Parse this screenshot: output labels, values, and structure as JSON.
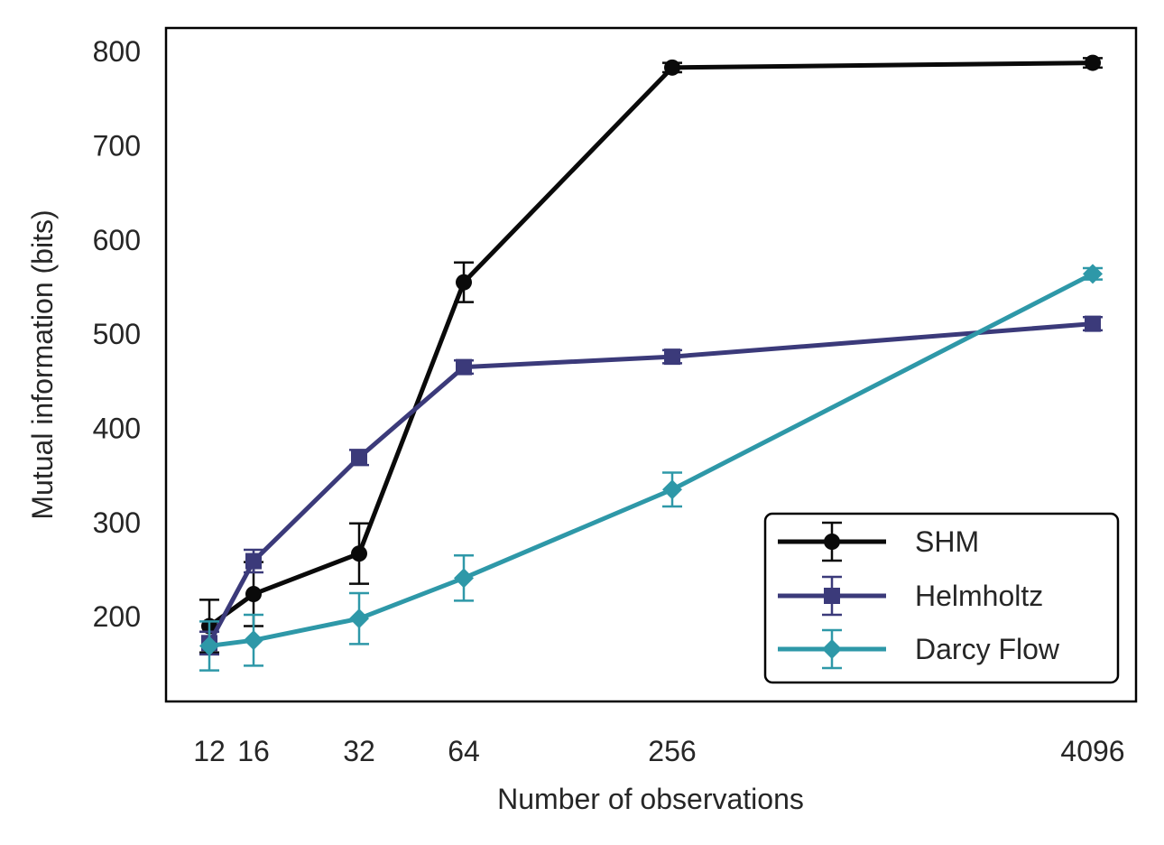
{
  "chart_data": {
    "type": "line",
    "title": "",
    "xlabel": "Number of observations",
    "ylabel": "Mutual information (bits)",
    "x_tick_labels": [
      "12",
      "16",
      "32",
      "64",
      "256",
      "4096"
    ],
    "y_ticks": [
      200,
      300,
      400,
      500,
      600,
      700,
      800
    ],
    "y_tick_labels": [
      "200",
      "300",
      "400",
      "500",
      "600",
      "700",
      "800"
    ],
    "ylim": [
      110,
      825
    ],
    "legend_position": "bottom-right",
    "series": [
      {
        "name": "SHM",
        "color": "#0a0a0a",
        "marker": "circle",
        "values": [
          190,
          224,
          267,
          555,
          783,
          788
        ],
        "errors": [
          28,
          34,
          32,
          21,
          5,
          5
        ]
      },
      {
        "name": "Helmholtz",
        "color": "#3b3a7a",
        "marker": "square",
        "values": [
          172,
          259,
          369,
          465,
          476,
          511
        ],
        "errors": [
          12,
          12,
          8,
          7,
          7,
          7
        ]
      },
      {
        "name": "Darcy Flow",
        "color": "#2e98a8",
        "marker": "diamond",
        "values": [
          169,
          175,
          198,
          241,
          335,
          564
        ],
        "errors": [
          26,
          27,
          27,
          24,
          18,
          6
        ]
      }
    ]
  }
}
